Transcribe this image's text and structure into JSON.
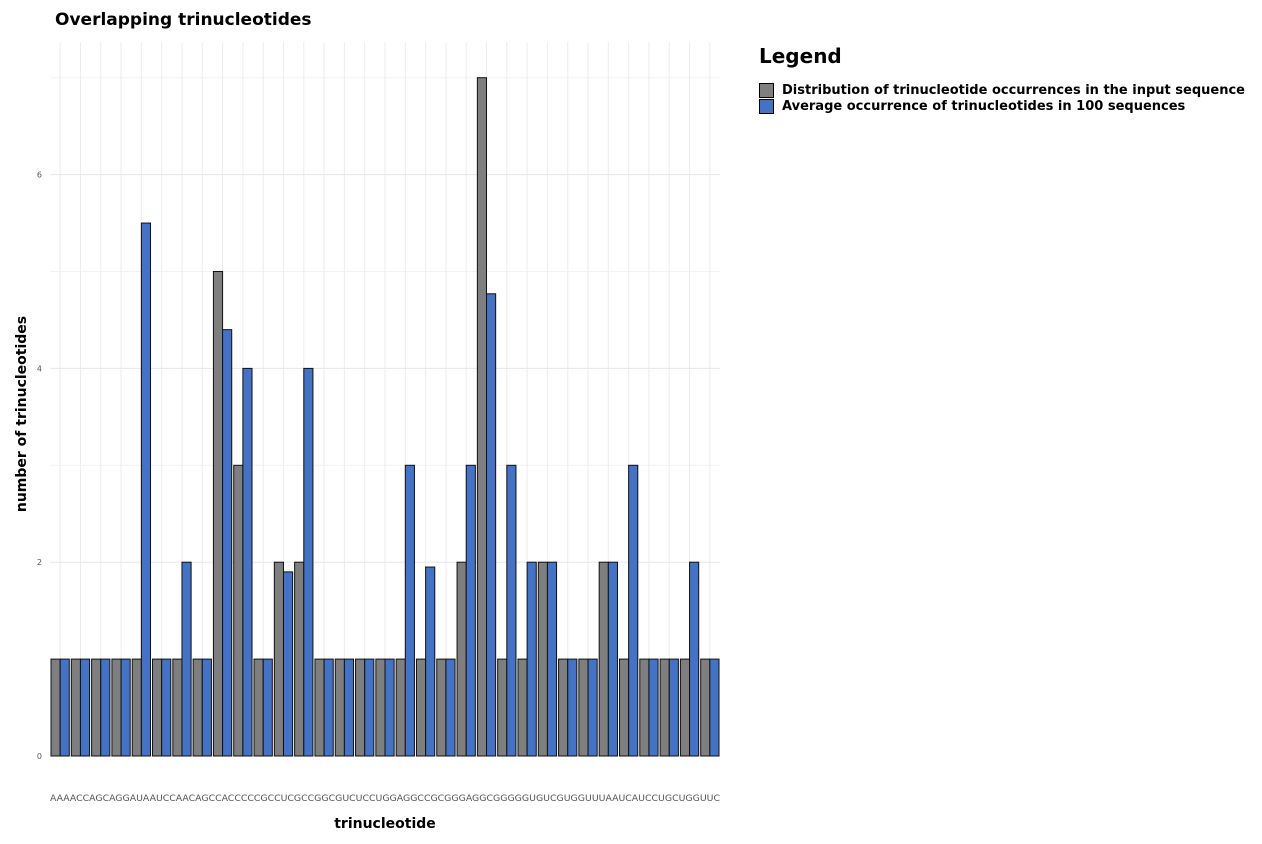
{
  "chart_data": {
    "type": "bar",
    "title": "Overlapping trinucleotides",
    "xlabel": "trinucleotide",
    "ylabel": "number of trinucleotides",
    "x_tick_text": "AAAACCAGCAGGAUAAUCCAACAGCCACCCCCGCCUCGCCGGCGUCUCCUGGAGGCCGCGGGAGGCGGGGGUGUCGUGGUUUAAUCAUCCUGCUGGUUC",
    "ylim": [
      0,
      7
    ],
    "y_ticks": [
      0,
      2,
      4,
      6
    ],
    "grid": true,
    "legend_title": "Legend",
    "legend_position": "right",
    "series": [
      {
        "name": "Distribution of trinucleotide occurrences in the input sequence",
        "color": "#7f7f7f",
        "values": [
          1,
          1,
          1,
          1,
          1,
          1,
          1,
          1,
          5,
          3,
          1,
          2,
          2,
          1,
          1,
          1,
          1,
          1,
          1,
          1,
          2,
          7,
          1,
          1,
          2,
          1,
          1,
          2,
          1,
          1,
          1,
          1,
          1
        ]
      },
      {
        "name": "Average occurrence of trinucleotides in 100 sequences",
        "color": "#4472c4",
        "values": [
          1,
          1,
          1,
          1,
          5.5,
          1,
          2,
          1,
          4.4,
          4,
          1,
          1.9,
          4,
          1,
          1,
          1,
          1,
          3,
          1.95,
          1,
          3,
          4.77,
          3,
          2,
          2,
          1,
          1,
          2,
          3,
          1,
          1,
          2,
          1
        ]
      }
    ]
  }
}
